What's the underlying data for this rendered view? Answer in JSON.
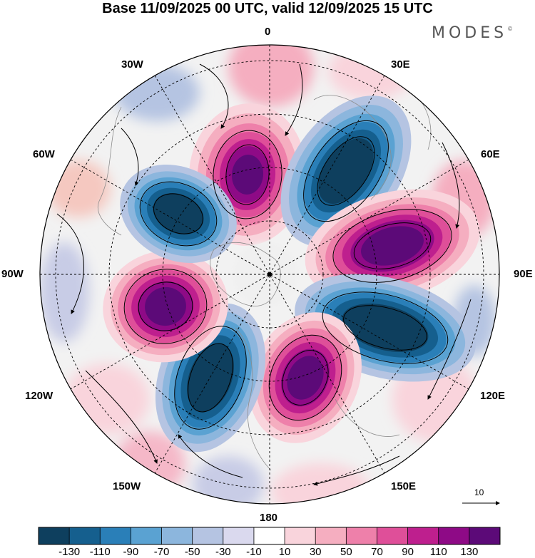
{
  "title": "Base 11/09/2025 00 UTC, valid 12/09/2025 15 UTC",
  "logo": "MODES",
  "logo_mark": "©",
  "longitude_labels": {
    "lon_0": "0",
    "lon_30e": "30E",
    "lon_60e": "60E",
    "lon_90e": "90E",
    "lon_120e": "120E",
    "lon_150e": "150E",
    "lon_180": "180",
    "lon_150w": "150W",
    "lon_120w": "120W",
    "lon_90w": "90W",
    "lon_60w": "60W",
    "lon_30w": "30W"
  },
  "vector_reference": "10",
  "colorbar": {
    "colors": [
      "#0e3f5e",
      "#155f8e",
      "#2a7fb8",
      "#5aa2d2",
      "#8cb6dd",
      "#b5c4e2",
      "#dad9ee",
      "#ffffff",
      "#f9d4dc",
      "#f5aec0",
      "#ee80aa",
      "#df4f99",
      "#be1f8e",
      "#8e0a86",
      "#5c0a78"
    ],
    "tick_labels": [
      "-130",
      "-110",
      "-90",
      "-70",
      "-50",
      "-30",
      "-10",
      "10",
      "30",
      "50",
      "70",
      "90",
      "110",
      "130"
    ]
  }
}
